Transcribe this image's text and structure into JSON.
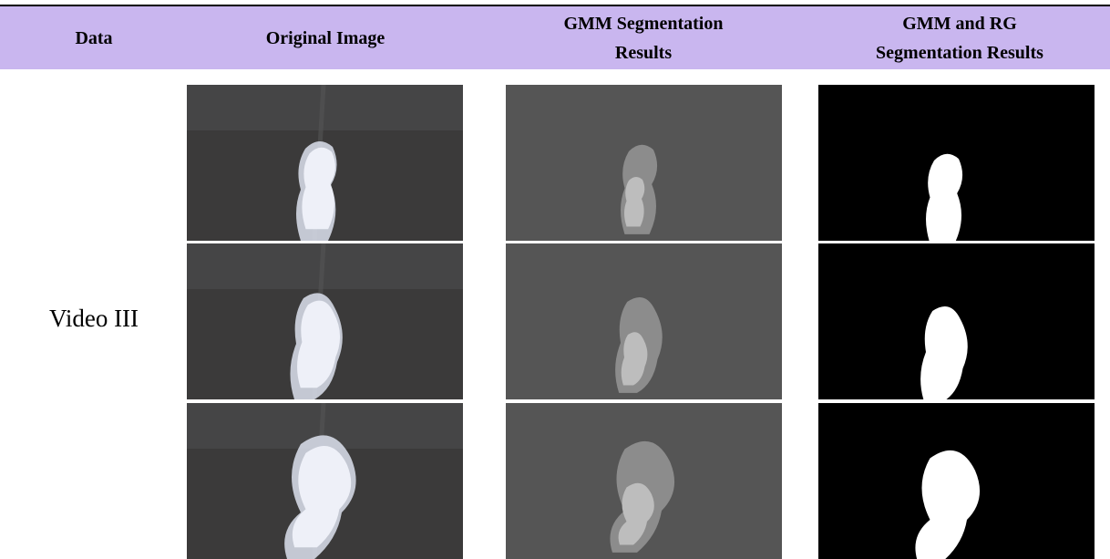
{
  "table": {
    "header": [
      "Data",
      "Original Image",
      "GMM Segmentation Results",
      "GMM and RG Segmentation Results"
    ],
    "rows": [
      {
        "data": "Video III"
      }
    ]
  }
}
